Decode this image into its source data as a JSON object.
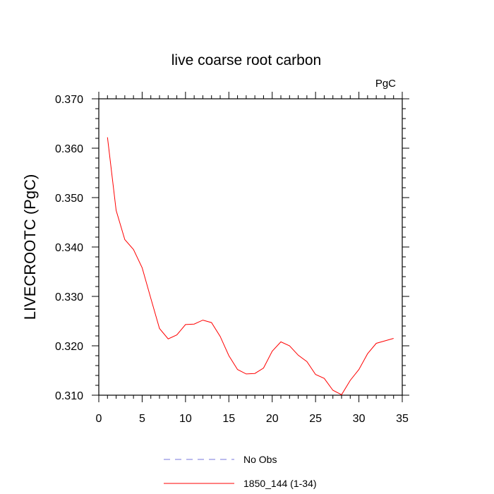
{
  "chart_data": {
    "type": "line",
    "title": "live coarse root carbon",
    "units_label": "PgC",
    "xlabel": "",
    "ylabel": "LIVECROOTC  (PgC)",
    "xlim": [
      0,
      35
    ],
    "ylim": [
      0.31,
      0.37
    ],
    "x_ticks": [
      0,
      5,
      10,
      15,
      20,
      25,
      30,
      35
    ],
    "y_ticks": [
      0.31,
      0.32,
      0.33,
      0.34,
      0.35,
      0.36,
      0.37
    ],
    "y_tick_labels": [
      "0.310",
      "0.320",
      "0.330",
      "0.340",
      "0.350",
      "0.360",
      "0.370"
    ],
    "grid": false,
    "legend_position": "bottom",
    "legend": [
      {
        "name": "No Obs",
        "color": "#7777dd",
        "style": "dashed"
      },
      {
        "name": "1850_144 (1-34)",
        "color": "#ff0000",
        "style": "solid"
      }
    ],
    "series": [
      {
        "name": "1850_144 (1-34)",
        "color": "#ff0000",
        "x": [
          1,
          2,
          3,
          4,
          5,
          6,
          7,
          8,
          9,
          10,
          11,
          12,
          13,
          14,
          15,
          16,
          17,
          18,
          19,
          20,
          21,
          22,
          23,
          24,
          25,
          26,
          27,
          28,
          29,
          30,
          31,
          32,
          33,
          34
        ],
        "values": [
          0.3622,
          0.3474,
          0.3415,
          0.3395,
          0.3358,
          0.3296,
          0.3235,
          0.3214,
          0.3222,
          0.3243,
          0.3244,
          0.3252,
          0.3247,
          0.3219,
          0.318,
          0.3152,
          0.3143,
          0.3144,
          0.3155,
          0.3189,
          0.3208,
          0.32,
          0.3181,
          0.3168,
          0.3142,
          0.3134,
          0.311,
          0.3101,
          0.313,
          0.3152,
          0.3184,
          0.3205,
          0.321,
          0.3215
        ]
      }
    ]
  }
}
